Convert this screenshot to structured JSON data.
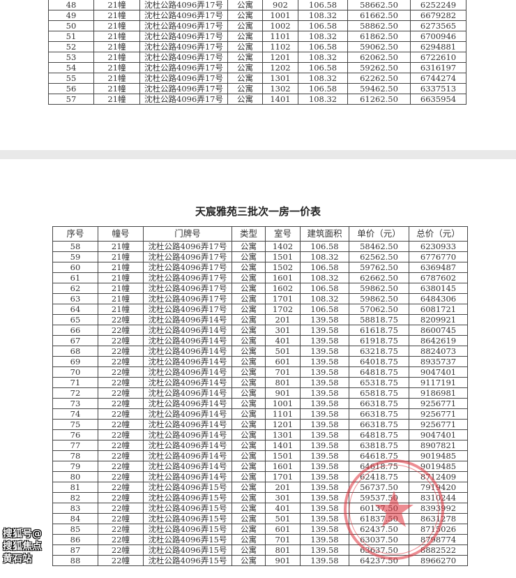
{
  "page1": {
    "rows": [
      [
        "48",
        "21幢",
        "沈杜公路4096弄17号",
        "公寓",
        "902",
        "106.58",
        "58662.50",
        "6252249"
      ],
      [
        "49",
        "21幢",
        "沈杜公路4096弄17号",
        "公寓",
        "1001",
        "108.32",
        "61662.50",
        "6679282"
      ],
      [
        "50",
        "21幢",
        "沈杜公路4096弄17号",
        "公寓",
        "1002",
        "106.58",
        "58862.50",
        "6273565"
      ],
      [
        "51",
        "21幢",
        "沈杜公路4096弄17号",
        "公寓",
        "1101",
        "108.32",
        "61862.50",
        "6700946"
      ],
      [
        "52",
        "21幢",
        "沈杜公路4096弄17号",
        "公寓",
        "1102",
        "106.58",
        "59062.50",
        "6294881"
      ],
      [
        "53",
        "21幢",
        "沈杜公路4096弄17号",
        "公寓",
        "1201",
        "108.32",
        "62062.50",
        "6722610"
      ],
      [
        "54",
        "21幢",
        "沈杜公路4096弄17号",
        "公寓",
        "1202",
        "106.58",
        "59262.50",
        "6316197"
      ],
      [
        "55",
        "21幢",
        "沈杜公路4096弄17号",
        "公寓",
        "1301",
        "108.32",
        "62262.50",
        "6744274"
      ],
      [
        "56",
        "21幢",
        "沈杜公路4096弄17号",
        "公寓",
        "1302",
        "106.58",
        "59462.50",
        "6337513"
      ],
      [
        "57",
        "21幢",
        "沈杜公路4096弄17号",
        "公寓",
        "1401",
        "108.32",
        "61262.50",
        "6635954"
      ]
    ]
  },
  "page2": {
    "title": "天宸雅苑三批次一房一价表",
    "headers": [
      "序号",
      "幢号",
      "门牌号",
      "类型",
      "室号",
      "建筑面积",
      "单价（元）",
      "总价（元）"
    ],
    "rows": [
      [
        "58",
        "21幢",
        "沈杜公路4096弄17号",
        "公寓",
        "1402",
        "106.58",
        "58462.50",
        "6230933"
      ],
      [
        "59",
        "21幢",
        "沈杜公路4096弄17号",
        "公寓",
        "1501",
        "108.32",
        "62562.50",
        "6776770"
      ],
      [
        "60",
        "21幢",
        "沈杜公路4096弄17号",
        "公寓",
        "1502",
        "106.58",
        "59762.50",
        "6369487"
      ],
      [
        "61",
        "21幢",
        "沈杜公路4096弄17号",
        "公寓",
        "1601",
        "108.32",
        "62662.50",
        "6787602"
      ],
      [
        "62",
        "21幢",
        "沈杜公路4096弄17号",
        "公寓",
        "1602",
        "106.58",
        "59862.50",
        "6380145"
      ],
      [
        "63",
        "21幢",
        "沈杜公路4096弄17号",
        "公寓",
        "1701",
        "108.32",
        "59862.50",
        "6484306"
      ],
      [
        "64",
        "21幢",
        "沈杜公路4096弄17号",
        "公寓",
        "1702",
        "106.58",
        "57062.50",
        "6081721"
      ],
      [
        "65",
        "22幢",
        "沈杜公路4096弄14号",
        "公寓",
        "201",
        "139.58",
        "58818.75",
        "8209921"
      ],
      [
        "66",
        "22幢",
        "沈杜公路4096弄14号",
        "公寓",
        "301",
        "139.58",
        "61618.75",
        "8600745"
      ],
      [
        "67",
        "22幢",
        "沈杜公路4096弄14号",
        "公寓",
        "401",
        "139.58",
        "61918.75",
        "8642619"
      ],
      [
        "68",
        "22幢",
        "沈杜公路4096弄14号",
        "公寓",
        "501",
        "139.58",
        "63218.75",
        "8824073"
      ],
      [
        "69",
        "22幢",
        "沈杜公路4096弄14号",
        "公寓",
        "601",
        "139.58",
        "64018.75",
        "8935737"
      ],
      [
        "70",
        "22幢",
        "沈杜公路4096弄14号",
        "公寓",
        "701",
        "139.58",
        "64818.75",
        "9047401"
      ],
      [
        "71",
        "22幢",
        "沈杜公路4096弄14号",
        "公寓",
        "801",
        "139.58",
        "65318.75",
        "9117191"
      ],
      [
        "72",
        "22幢",
        "沈杜公路4096弄14号",
        "公寓",
        "901",
        "139.58",
        "65818.75",
        "9186981"
      ],
      [
        "73",
        "22幢",
        "沈杜公路4096弄14号",
        "公寓",
        "1001",
        "139.58",
        "66318.75",
        "9256771"
      ],
      [
        "74",
        "22幢",
        "沈杜公路4096弄14号",
        "公寓",
        "1101",
        "139.58",
        "66318.75",
        "9256771"
      ],
      [
        "75",
        "22幢",
        "沈杜公路4096弄14号",
        "公寓",
        "1201",
        "139.58",
        "66318.75",
        "9256771"
      ],
      [
        "76",
        "22幢",
        "沈杜公路4096弄14号",
        "公寓",
        "1301",
        "139.58",
        "64818.75",
        "9047401"
      ],
      [
        "77",
        "22幢",
        "沈杜公路4096弄14号",
        "公寓",
        "1401",
        "139.58",
        "63818.75",
        "8907821"
      ],
      [
        "78",
        "22幢",
        "沈杜公路4096弄14号",
        "公寓",
        "1501",
        "139.58",
        "64618.75",
        "9019485"
      ],
      [
        "79",
        "22幢",
        "沈杜公路4096弄14号",
        "公寓",
        "1601",
        "139.58",
        "64618.75",
        "9019485"
      ],
      [
        "80",
        "22幢",
        "沈杜公路4096弄14号",
        "公寓",
        "1701",
        "139.58",
        "62418.75",
        "8712409"
      ],
      [
        "81",
        "22幢",
        "沈杜公路4096弄15号",
        "公寓",
        "201",
        "139.58",
        "56737.50",
        "7919420"
      ],
      [
        "82",
        "22幢",
        "沈杜公路4096弄15号",
        "公寓",
        "301",
        "139.58",
        "59537.50",
        "8310244"
      ],
      [
        "83",
        "22幢",
        "沈杜公路4096弄15号",
        "公寓",
        "401",
        "139.58",
        "60137.50",
        "8393992"
      ],
      [
        "84",
        "22幢",
        "沈杜公路4096弄15号",
        "公寓",
        "501",
        "139.58",
        "61837.50",
        "8631278"
      ],
      [
        "85",
        "22幢",
        "沈杜公路4096弄15号",
        "公寓",
        "601",
        "139.58",
        "62437.50",
        "8715026"
      ],
      [
        "86",
        "22幢",
        "沈杜公路4096弄15号",
        "公寓",
        "701",
        "139.58",
        "63037.50",
        "8798774"
      ],
      [
        "87",
        "22幢",
        "沈杜公路4096弄15号",
        "公寓",
        "801",
        "139.58",
        "63637.50",
        "8882522"
      ],
      [
        "88",
        "22幢",
        "沈杜公路4096弄15号",
        "公寓",
        "901",
        "139.58",
        "64237.50",
        "8966270"
      ]
    ]
  },
  "watermark": "搜狐号@搜狐焦点黄石站",
  "stamp_color": "#e0303a"
}
